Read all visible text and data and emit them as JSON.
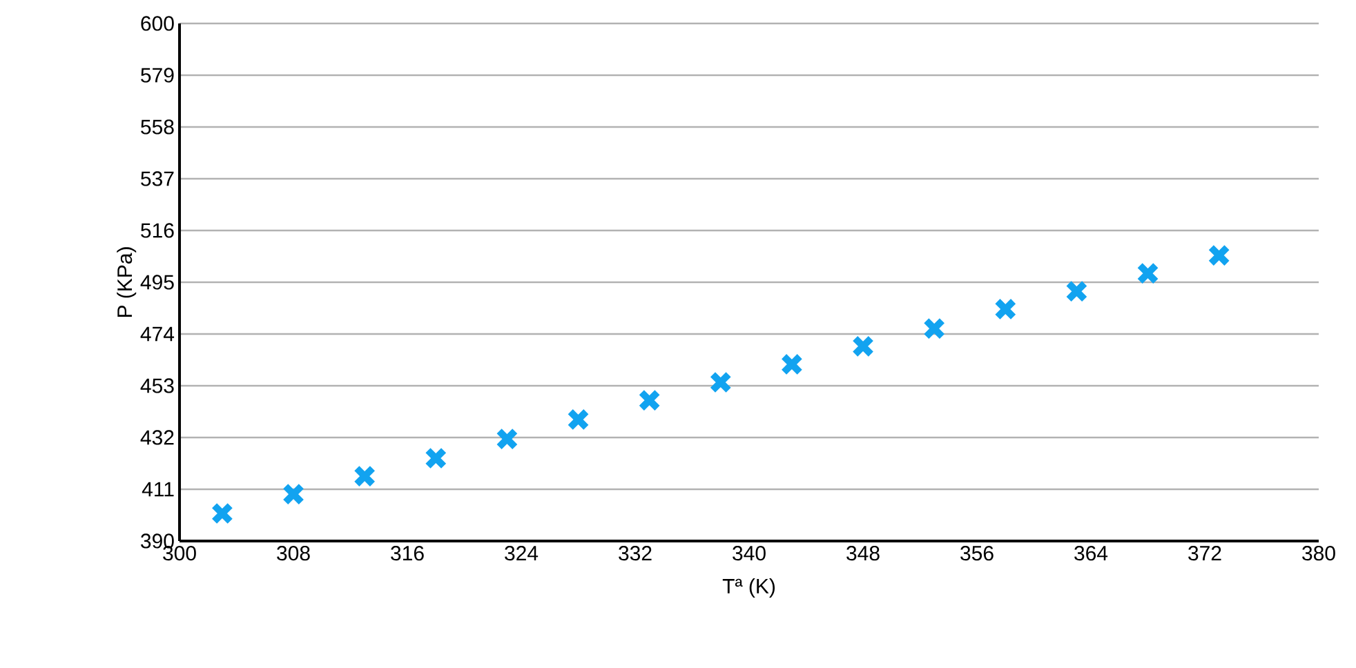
{
  "chart_data": {
    "type": "scatter",
    "xlabel": "Tª (K)",
    "ylabel": "P (KPa)",
    "x": [
      303,
      308,
      313,
      318,
      323,
      328,
      333,
      338,
      343,
      348,
      353,
      358,
      363,
      368,
      373
    ],
    "series": [
      {
        "color": "#12a3f0",
        "values": [
          401.2,
          409.0,
          416.3,
          423.6,
          431.4,
          439.3,
          447.1,
          454.4,
          461.7,
          469.0,
          476.2,
          484.1,
          491.3,
          498.6,
          505.9
        ]
      }
    ],
    "xlim": [
      300,
      380
    ],
    "xticks": [
      300,
      308,
      316,
      324,
      332,
      340,
      348,
      356,
      364,
      372,
      380
    ],
    "ylim": [
      390,
      600
    ],
    "yticks": [
      390,
      411,
      432,
      453,
      474,
      495,
      516,
      537,
      558,
      579,
      600
    ],
    "grid": "y",
    "marker": "cross"
  }
}
